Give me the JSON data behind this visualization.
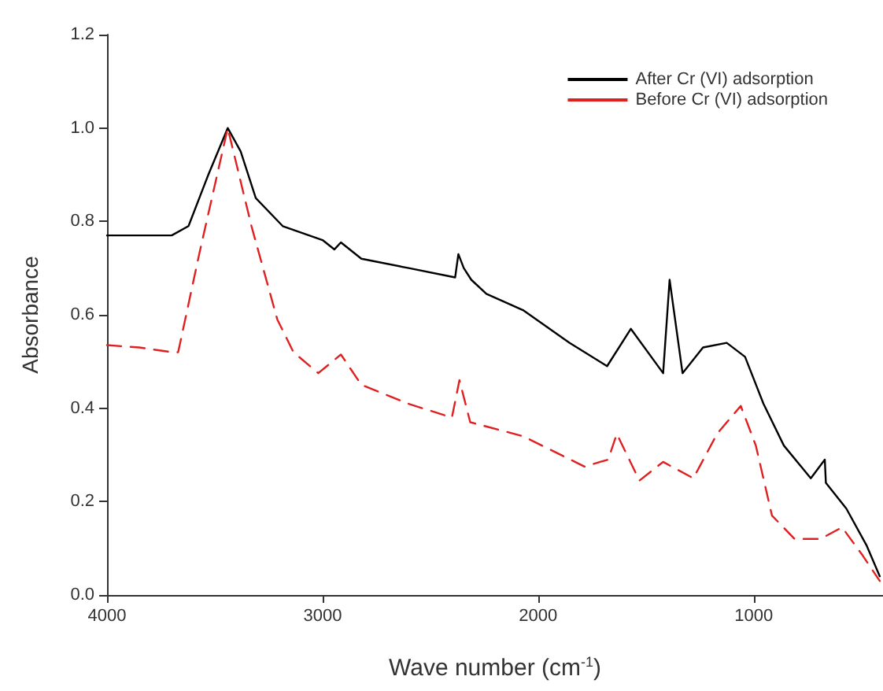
{
  "chart_data": {
    "type": "line",
    "xlabel": "Wave number (cm$^{-1}$)",
    "ylabel": "Absorbance",
    "xlim": [
      4000,
      400
    ],
    "ylim": [
      0,
      1.2
    ],
    "xticks": [
      4000,
      3000,
      2000,
      1000
    ],
    "yticks": [
      {
        "value": 0,
        "label": "0.0"
      },
      {
        "value": 0.2,
        "label": "0.2"
      },
      {
        "value": 0.4,
        "label": "0.4"
      },
      {
        "value": 0.6,
        "label": "0.6"
      },
      {
        "value": 0.8,
        "label": "0.8"
      },
      {
        "value": 1,
        "label": "1.0"
      },
      {
        "value": 1.2,
        "label": "1.2"
      }
    ],
    "grid": false,
    "legend": "top right",
    "marker": "none",
    "series": [
      {
        "name": "After Cr (VI) adsorption",
        "color": "#000000",
        "line_style": "solid",
        "x": [
          4000,
          3850,
          3700,
          3622,
          3530,
          3440,
          3380,
          3310,
          3185,
          3000,
          2945,
          2915,
          2820,
          2600,
          2385,
          2370,
          2345,
          2310,
          2240,
          2070,
          1855,
          1680,
          1570,
          1420,
          1390,
          1330,
          1235,
          1125,
          1040,
          955,
          860,
          735,
          670,
          665,
          570,
          475,
          415
        ],
        "values": [
          0.77,
          0.77,
          0.77,
          0.79,
          0.9,
          1.0,
          0.95,
          0.85,
          0.79,
          0.76,
          0.74,
          0.755,
          0.72,
          0.7,
          0.68,
          0.73,
          0.7,
          0.675,
          0.645,
          0.61,
          0.54,
          0.49,
          0.57,
          0.475,
          0.675,
          0.475,
          0.53,
          0.54,
          0.51,
          0.41,
          0.32,
          0.25,
          0.29,
          0.24,
          0.185,
          0.105,
          0.04
        ]
      },
      {
        "name": "Before Cr (VI) adsorption",
        "color": "#e02020",
        "line_style": "dashed",
        "x": [
          4000,
          3850,
          3700,
          3670,
          3570,
          3440,
          3330,
          3210,
          3135,
          3020,
          2915,
          2820,
          2605,
          2400,
          2365,
          2315,
          2070,
          1785,
          1675,
          1635,
          1530,
          1420,
          1280,
          1170,
          1060,
          990,
          915,
          810,
          690,
          590,
          495,
          415
        ],
        "values": [
          0.535,
          0.53,
          0.52,
          0.52,
          0.735,
          1.0,
          0.79,
          0.59,
          0.52,
          0.475,
          0.515,
          0.45,
          0.41,
          0.38,
          0.46,
          0.37,
          0.34,
          0.275,
          0.29,
          0.345,
          0.245,
          0.285,
          0.25,
          0.345,
          0.405,
          0.32,
          0.17,
          0.12,
          0.12,
          0.145,
          0.085,
          0.03
        ]
      }
    ]
  }
}
